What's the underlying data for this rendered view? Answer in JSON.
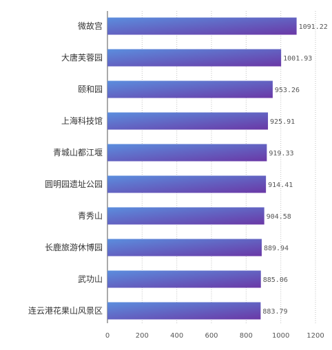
{
  "chart_data": {
    "type": "bar",
    "orientation": "horizontal",
    "title": "",
    "xlabel": "",
    "ylabel": "",
    "categories": [
      "微故宫",
      "大唐芙蓉园",
      "颐和园",
      "上海科技馆",
      "青城山都江堰",
      "圆明园遗址公园",
      "青秀山",
      "长鹿旅游休博园",
      "武功山",
      "连云港花果山风景区"
    ],
    "values": [
      1091.22,
      1001.93,
      953.26,
      925.91,
      919.33,
      914.41,
      904.58,
      889.94,
      885.06,
      883.79
    ],
    "value_labels": [
      "1091.22",
      "1001.93",
      "953.26",
      "925.91",
      "919.33",
      "914.41",
      "904.58",
      "889.94",
      "885.06",
      "883.79"
    ],
    "xlim": [
      0,
      1200
    ],
    "xticks": [
      0,
      200,
      400,
      600,
      800,
      1000,
      1200
    ],
    "xtick_labels": [
      "0",
      "200",
      "400",
      "600",
      "800",
      "1000",
      "1200"
    ],
    "grid": "vertical dotted",
    "legend": "none",
    "colors": {
      "bar_start": "#5b8ede",
      "bar_end": "#6a38a6",
      "grid": "#bfbfbf",
      "axis": "#555555"
    }
  }
}
